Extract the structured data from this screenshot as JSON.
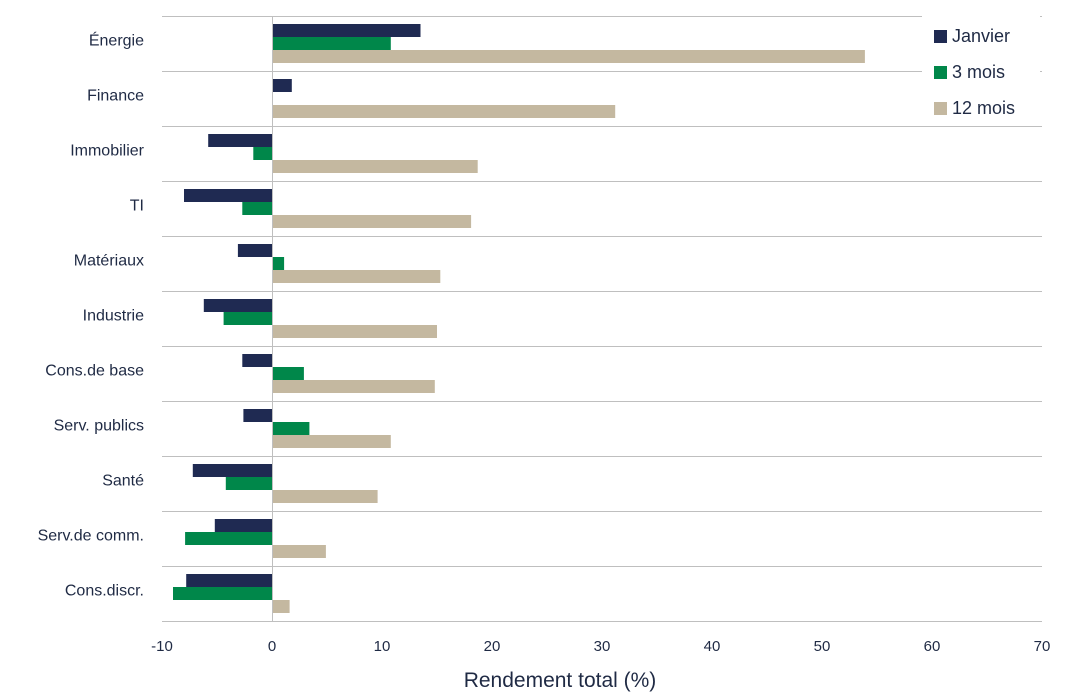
{
  "chart_data": {
    "type": "bar",
    "orientation": "horizontal",
    "categories": [
      "Énergie",
      "Finance",
      "Immobilier",
      "TI",
      "Matériaux",
      "Industrie",
      "Cons.de base",
      "Serv. publics",
      "Santé",
      "Serv.de comm.",
      "Cons.discr."
    ],
    "series": [
      {
        "name": "Janvier",
        "color": "#1f2a52",
        "values": [
          13.5,
          1.8,
          -5.8,
          -8.0,
          -3.1,
          -6.2,
          -2.7,
          -2.6,
          -7.2,
          -5.2,
          -7.8
        ]
      },
      {
        "name": "3 mois",
        "color": "#00874a",
        "values": [
          10.8,
          0.0,
          -1.7,
          -2.7,
          1.1,
          -4.4,
          2.9,
          3.4,
          -4.2,
          -7.9,
          -9.0
        ]
      },
      {
        "name": "12 mois",
        "color": "#c4b8a0",
        "values": [
          53.9,
          31.2,
          18.7,
          18.1,
          15.3,
          15.0,
          14.8,
          10.8,
          9.6,
          4.9,
          1.6
        ]
      }
    ],
    "xlabel": "Rendement total (%)",
    "ylabel": "",
    "title": "",
    "xlim": [
      -10,
      70
    ],
    "xticks": [
      "-10",
      "0",
      "10",
      "20",
      "30",
      "40",
      "50",
      "60",
      "70"
    ],
    "grid": "horizontal separators between categories",
    "legend_position": "top-right"
  }
}
